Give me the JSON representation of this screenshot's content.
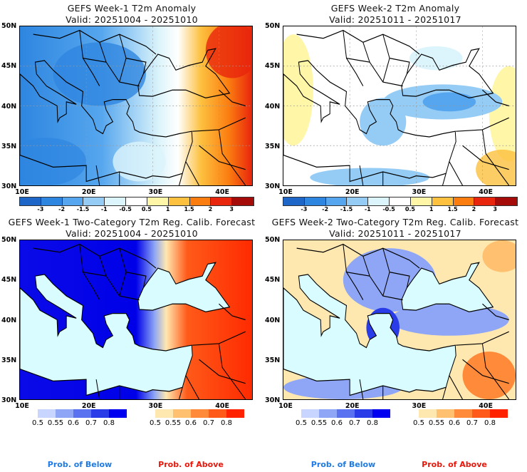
{
  "panels": [
    {
      "title": "GEFS Week-1 T2m Anomaly",
      "valid": "Valid: 20251004 - 20251010"
    },
    {
      "title": "GEFS Week-2 T2m Anomaly",
      "valid": "Valid: 20251011 - 20251017"
    },
    {
      "title": "GEFS Week-1 Two-Category T2m Reg. Calib. Forecast",
      "valid": "Valid: 20251004 - 20251010"
    },
    {
      "title": "GEFS Week-2 Two-Category T2m Reg. Calib. Forecast",
      "valid": "Valid: 20251011 - 20251017"
    }
  ],
  "axes": {
    "lat_labels": [
      "50N",
      "45N",
      "40N",
      "35N",
      "30N"
    ],
    "lon_labels": [
      "10E",
      "20E",
      "30E",
      "40E"
    ]
  },
  "anomaly_colorbar": {
    "colors": [
      "#1f66c9",
      "#2f86e0",
      "#55a6ee",
      "#95ccf5",
      "#dcf4fb",
      "#ffffff",
      "#fff6a8",
      "#fdc03f",
      "#fb7d10",
      "#e8250d",
      "#a50b08"
    ],
    "labels": [
      "-3",
      "-2",
      "-1.5",
      "-1",
      "-0.5",
      "0.5",
      "1",
      "1.5",
      "2",
      "3"
    ]
  },
  "prob_below_colorbar": {
    "colors": [
      "#c8d6ff",
      "#8ea6f5",
      "#5a72f0",
      "#2a3ce8",
      "#0000f0"
    ],
    "labels": [
      "0.5",
      "0.55",
      "0.6",
      "0.7",
      "0.8"
    ]
  },
  "prob_above_colorbar": {
    "colors": [
      "#ffe8b0",
      "#ffc070",
      "#ff8a3a",
      "#ff5a1a",
      "#ff2200"
    ],
    "labels": [
      "0.5",
      "0.55",
      "0.6",
      "0.7",
      "0.8"
    ]
  },
  "legend": {
    "below": "Prob. of Below",
    "above": "Prob. of Above",
    "below_color": "#1e7be6",
    "above_color": "#e8170b"
  }
}
